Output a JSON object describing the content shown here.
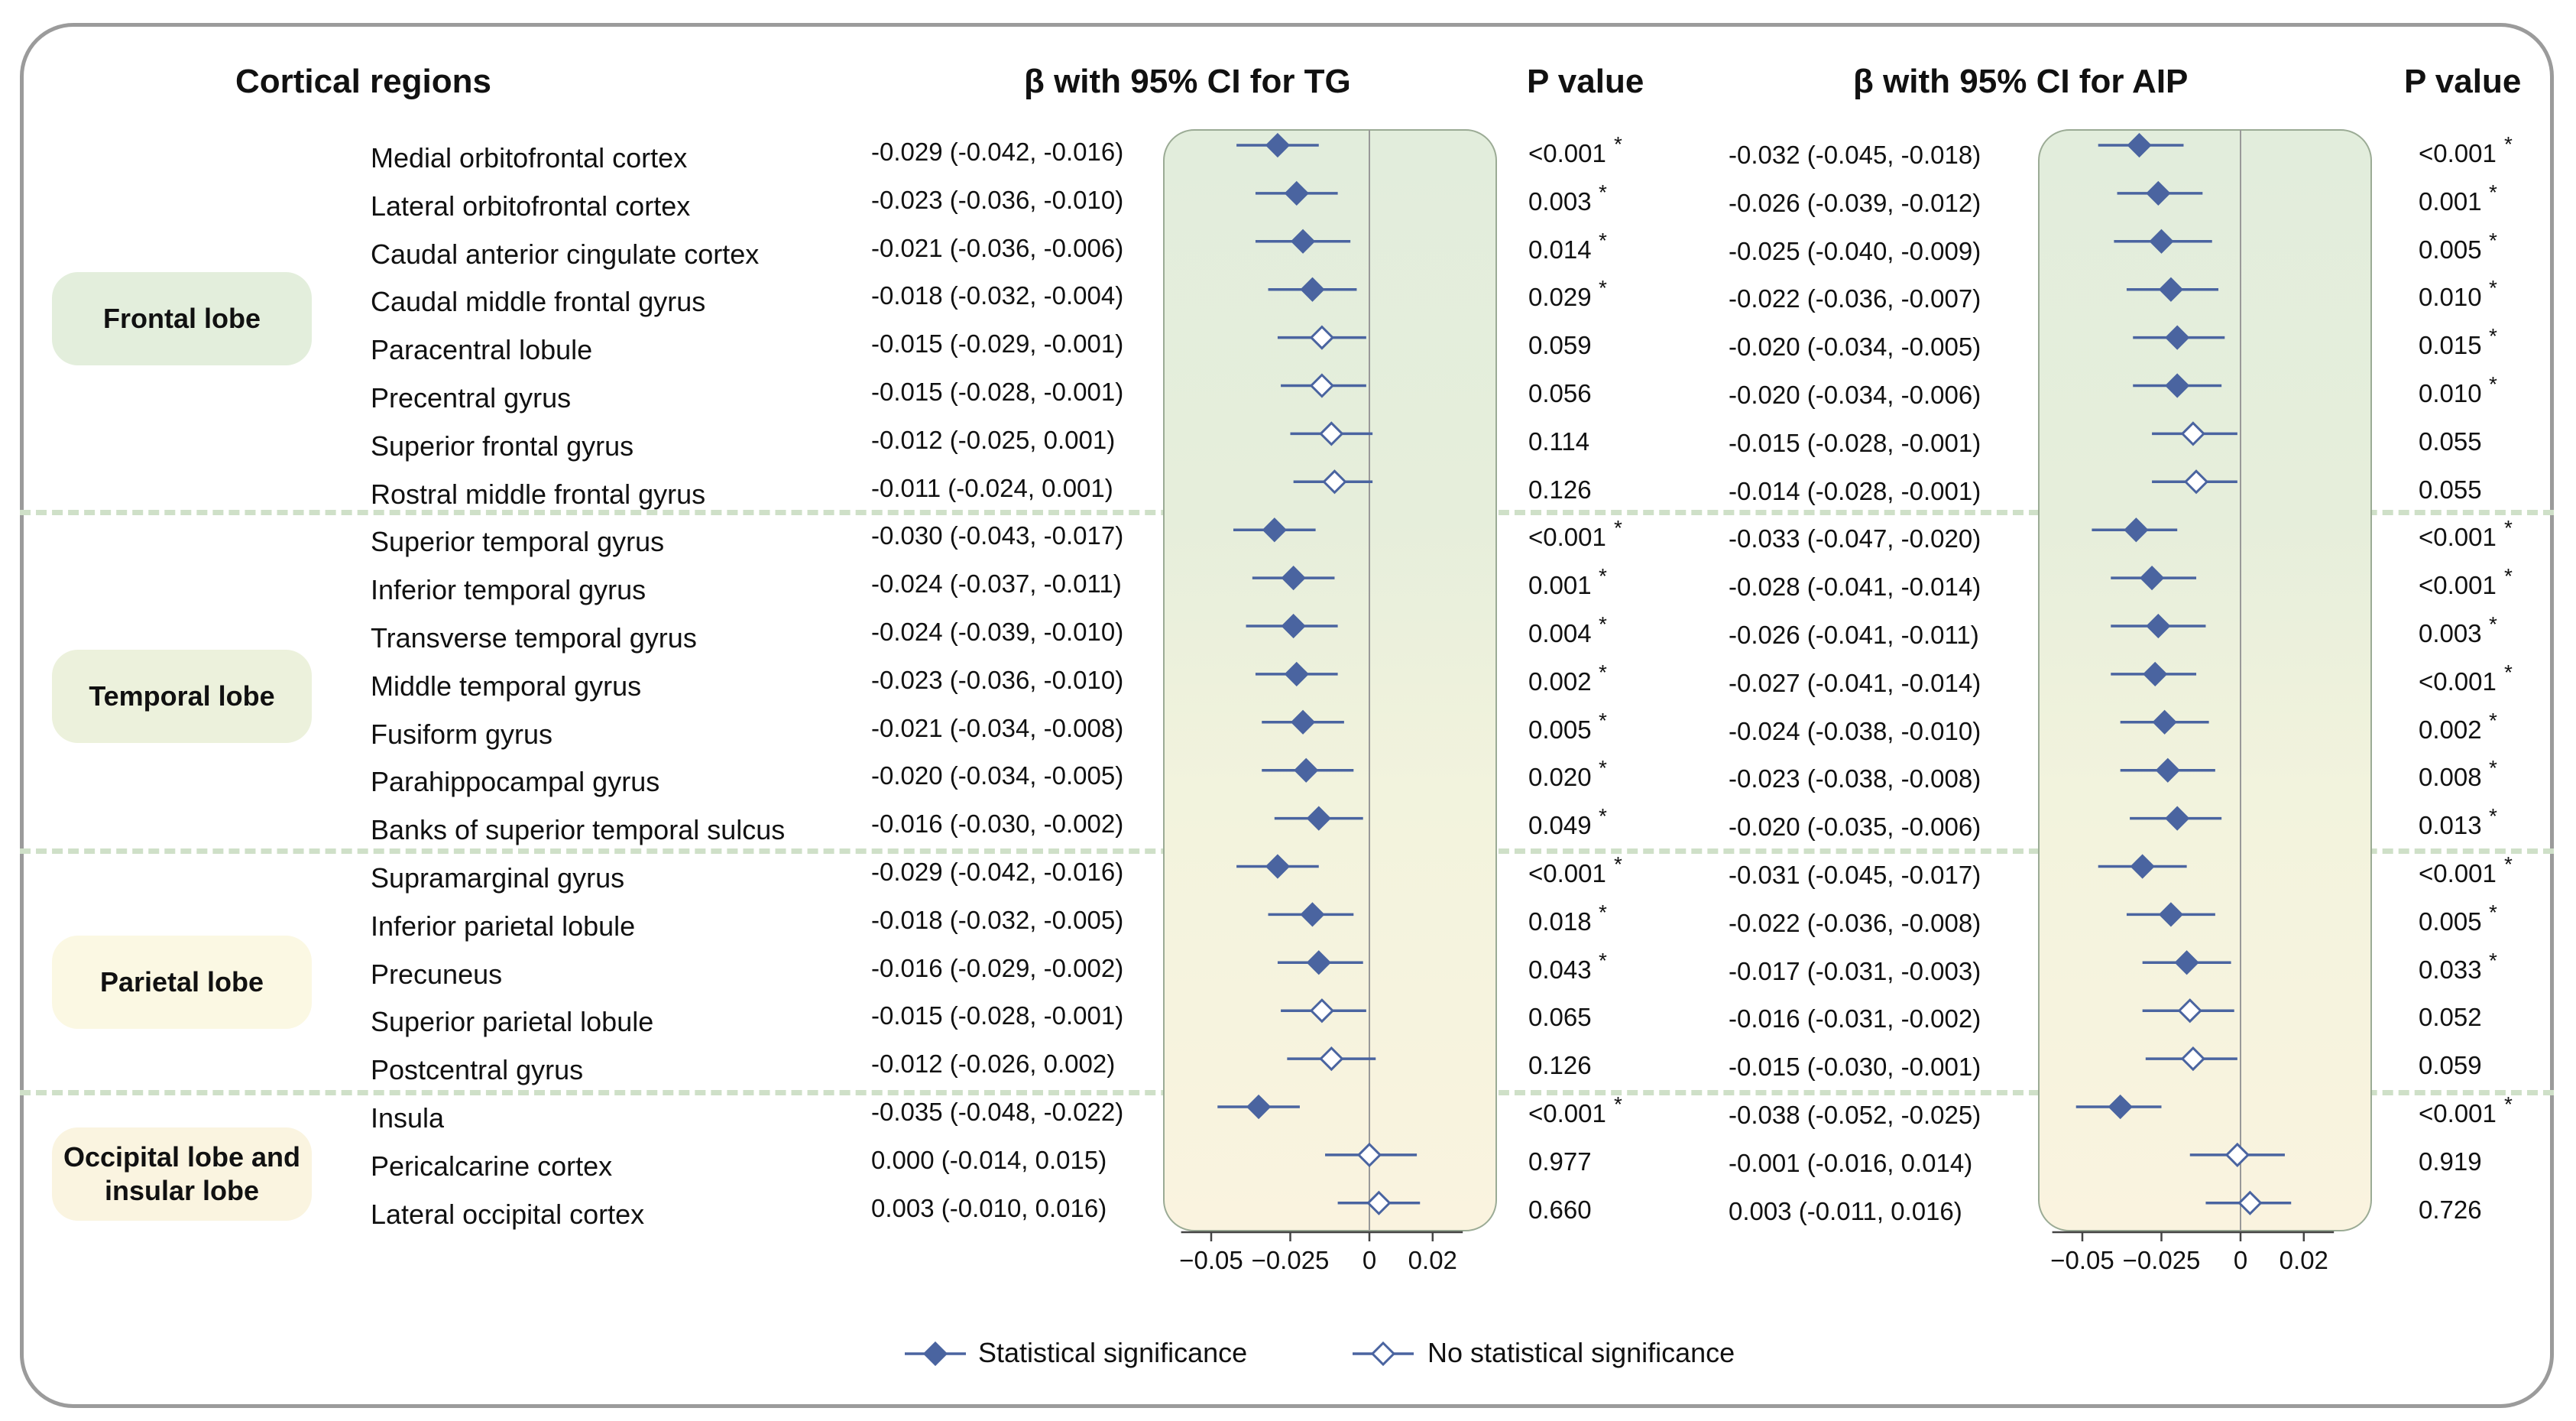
{
  "headers": {
    "regions": "Cortical regions",
    "tg": "β with 95% CI for TG",
    "p_tg": "P value",
    "aip": "β with 95% CI for AIP",
    "p_aip": "P value"
  },
  "groups": [
    {
      "label": "Frontal lobe",
      "color": "#e3eedc"
    },
    {
      "label": "Temporal lobe",
      "color": "#ecf1dc"
    },
    {
      "label": "Parietal lobe",
      "color": "#fbf8e3"
    },
    {
      "label": "Occipital lobe and insular lobe",
      "color": "#faf4e0"
    }
  ],
  "rows": [
    {
      "region": "Medial orbitofrontal cortex",
      "group": 0,
      "tg": {
        "ci": "-0.029 (-0.042, -0.016)",
        "b": -0.029,
        "lo": -0.042,
        "hi": -0.016,
        "p": "<0.001",
        "sig": true
      },
      "aip": {
        "ci": "-0.032 (-0.045, -0.018)",
        "b": -0.032,
        "lo": -0.045,
        "hi": -0.018,
        "p": "<0.001",
        "sig": true
      }
    },
    {
      "region": "Lateral orbitofrontal cortex",
      "group": 0,
      "tg": {
        "ci": "-0.023 (-0.036, -0.010)",
        "b": -0.023,
        "lo": -0.036,
        "hi": -0.01,
        "p": "0.003",
        "sig": true
      },
      "aip": {
        "ci": "-0.026 (-0.039, -0.012)",
        "b": -0.026,
        "lo": -0.039,
        "hi": -0.012,
        "p": "0.001",
        "sig": true
      }
    },
    {
      "region": "Caudal anterior cingulate cortex",
      "group": 0,
      "tg": {
        "ci": "-0.021 (-0.036, -0.006)",
        "b": -0.021,
        "lo": -0.036,
        "hi": -0.006,
        "p": "0.014",
        "sig": true
      },
      "aip": {
        "ci": "-0.025 (-0.040, -0.009)",
        "b": -0.025,
        "lo": -0.04,
        "hi": -0.009,
        "p": "0.005",
        "sig": true
      }
    },
    {
      "region": "Caudal middle frontal gyrus",
      "group": 0,
      "tg": {
        "ci": "-0.018 (-0.032, -0.004)",
        "b": -0.018,
        "lo": -0.032,
        "hi": -0.004,
        "p": "0.029",
        "sig": true
      },
      "aip": {
        "ci": "-0.022 (-0.036, -0.007)",
        "b": -0.022,
        "lo": -0.036,
        "hi": -0.007,
        "p": "0.010",
        "sig": true
      }
    },
    {
      "region": "Paracentral lobule",
      "group": 0,
      "tg": {
        "ci": "-0.015 (-0.029, -0.001)",
        "b": -0.015,
        "lo": -0.029,
        "hi": -0.001,
        "p": "0.059",
        "sig": false
      },
      "aip": {
        "ci": "-0.020 (-0.034, -0.005)",
        "b": -0.02,
        "lo": -0.034,
        "hi": -0.005,
        "p": "0.015",
        "sig": true
      }
    },
    {
      "region": "Precentral gyrus",
      "group": 0,
      "tg": {
        "ci": "-0.015 (-0.028, -0.001)",
        "b": -0.015,
        "lo": -0.028,
        "hi": -0.001,
        "p": "0.056",
        "sig": false
      },
      "aip": {
        "ci": "-0.020 (-0.034, -0.006)",
        "b": -0.02,
        "lo": -0.034,
        "hi": -0.006,
        "p": "0.010",
        "sig": true
      }
    },
    {
      "region": "Superior frontal gyrus",
      "group": 0,
      "tg": {
        "ci": "-0.012 (-0.025, 0.001)",
        "b": -0.012,
        "lo": -0.025,
        "hi": 0.001,
        "p": "0.114",
        "sig": false
      },
      "aip": {
        "ci": "-0.015 (-0.028, -0.001)",
        "b": -0.015,
        "lo": -0.028,
        "hi": -0.001,
        "p": "0.055",
        "sig": false
      }
    },
    {
      "region": "Rostral middle frontal gyrus",
      "group": 0,
      "tg": {
        "ci": "-0.011 (-0.024, 0.001)",
        "b": -0.011,
        "lo": -0.024,
        "hi": 0.001,
        "p": "0.126",
        "sig": false
      },
      "aip": {
        "ci": "-0.014 (-0.028, -0.001)",
        "b": -0.014,
        "lo": -0.028,
        "hi": -0.001,
        "p": "0.055",
        "sig": false
      }
    },
    {
      "region": "Superior temporal gyrus",
      "group": 1,
      "tg": {
        "ci": "-0.030 (-0.043, -0.017)",
        "b": -0.03,
        "lo": -0.043,
        "hi": -0.017,
        "p": "<0.001",
        "sig": true
      },
      "aip": {
        "ci": "-0.033 (-0.047, -0.020)",
        "b": -0.033,
        "lo": -0.047,
        "hi": -0.02,
        "p": "<0.001",
        "sig": true
      }
    },
    {
      "region": "Inferior temporal gyrus",
      "group": 1,
      "tg": {
        "ci": "-0.024 (-0.037, -0.011)",
        "b": -0.024,
        "lo": -0.037,
        "hi": -0.011,
        "p": "0.001",
        "sig": true
      },
      "aip": {
        "ci": "-0.028 (-0.041, -0.014)",
        "b": -0.028,
        "lo": -0.041,
        "hi": -0.014,
        "p": "<0.001",
        "sig": true
      }
    },
    {
      "region": "Transverse temporal gyrus",
      "group": 1,
      "tg": {
        "ci": "-0.024 (-0.039, -0.010)",
        "b": -0.024,
        "lo": -0.039,
        "hi": -0.01,
        "p": "0.004",
        "sig": true
      },
      "aip": {
        "ci": "-0.026 (-0.041, -0.011)",
        "b": -0.026,
        "lo": -0.041,
        "hi": -0.011,
        "p": "0.003",
        "sig": true
      }
    },
    {
      "region": "Middle temporal gyrus",
      "group": 1,
      "tg": {
        "ci": "-0.023 (-0.036, -0.010)",
        "b": -0.023,
        "lo": -0.036,
        "hi": -0.01,
        "p": "0.002",
        "sig": true
      },
      "aip": {
        "ci": "-0.027 (-0.041, -0.014)",
        "b": -0.027,
        "lo": -0.041,
        "hi": -0.014,
        "p": "<0.001",
        "sig": true
      }
    },
    {
      "region": "Fusiform gyrus",
      "group": 1,
      "tg": {
        "ci": "-0.021 (-0.034, -0.008)",
        "b": -0.021,
        "lo": -0.034,
        "hi": -0.008,
        "p": "0.005",
        "sig": true
      },
      "aip": {
        "ci": "-0.024 (-0.038, -0.010)",
        "b": -0.024,
        "lo": -0.038,
        "hi": -0.01,
        "p": "0.002",
        "sig": true
      }
    },
    {
      "region": "Parahippocampal gyrus",
      "group": 1,
      "tg": {
        "ci": "-0.020 (-0.034, -0.005)",
        "b": -0.02,
        "lo": -0.034,
        "hi": -0.005,
        "p": "0.020",
        "sig": true
      },
      "aip": {
        "ci": "-0.023 (-0.038, -0.008)",
        "b": -0.023,
        "lo": -0.038,
        "hi": -0.008,
        "p": "0.008",
        "sig": true
      }
    },
    {
      "region": "Banks of superior temporal sulcus",
      "group": 1,
      "tg": {
        "ci": "-0.016 (-0.030, -0.002)",
        "b": -0.016,
        "lo": -0.03,
        "hi": -0.002,
        "p": "0.049",
        "sig": true
      },
      "aip": {
        "ci": "-0.020 (-0.035, -0.006)",
        "b": -0.02,
        "lo": -0.035,
        "hi": -0.006,
        "p": "0.013",
        "sig": true
      }
    },
    {
      "region": "Supramarginal gyrus",
      "group": 2,
      "tg": {
        "ci": "-0.029 (-0.042, -0.016)",
        "b": -0.029,
        "lo": -0.042,
        "hi": -0.016,
        "p": "<0.001",
        "sig": true
      },
      "aip": {
        "ci": "-0.031 (-0.045, -0.017)",
        "b": -0.031,
        "lo": -0.045,
        "hi": -0.017,
        "p": "<0.001",
        "sig": true
      }
    },
    {
      "region": "Inferior parietal lobule",
      "group": 2,
      "tg": {
        "ci": "-0.018 (-0.032, -0.005)",
        "b": -0.018,
        "lo": -0.032,
        "hi": -0.005,
        "p": "0.018",
        "sig": true
      },
      "aip": {
        "ci": "-0.022 (-0.036, -0.008)",
        "b": -0.022,
        "lo": -0.036,
        "hi": -0.008,
        "p": "0.005",
        "sig": true
      }
    },
    {
      "region": "Precuneus",
      "group": 2,
      "tg": {
        "ci": "-0.016 (-0.029, -0.002)",
        "b": -0.016,
        "lo": -0.029,
        "hi": -0.002,
        "p": "0.043",
        "sig": true
      },
      "aip": {
        "ci": "-0.017 (-0.031, -0.003)",
        "b": -0.017,
        "lo": -0.031,
        "hi": -0.003,
        "p": "0.033",
        "sig": true
      }
    },
    {
      "region": "Superior parietal lobule",
      "group": 2,
      "tg": {
        "ci": "-0.015 (-0.028, -0.001)",
        "b": -0.015,
        "lo": -0.028,
        "hi": -0.001,
        "p": "0.065",
        "sig": false
      },
      "aip": {
        "ci": "-0.016 (-0.031, -0.002)",
        "b": -0.016,
        "lo": -0.031,
        "hi": -0.002,
        "p": "0.052",
        "sig": false
      }
    },
    {
      "region": "Postcentral gyrus",
      "group": 2,
      "tg": {
        "ci": "-0.012 (-0.026, 0.002)",
        "b": -0.012,
        "lo": -0.026,
        "hi": 0.002,
        "p": "0.126",
        "sig": false
      },
      "aip": {
        "ci": "-0.015 (-0.030, -0.001)",
        "b": -0.015,
        "lo": -0.03,
        "hi": -0.001,
        "p": "0.059",
        "sig": false
      }
    },
    {
      "region": "Insula",
      "group": 3,
      "tg": {
        "ci": "-0.035 (-0.048, -0.022)",
        "b": -0.035,
        "lo": -0.048,
        "hi": -0.022,
        "p": "<0.001",
        "sig": true
      },
      "aip": {
        "ci": "-0.038 (-0.052, -0.025)",
        "b": -0.038,
        "lo": -0.052,
        "hi": -0.025,
        "p": "<0.001",
        "sig": true
      }
    },
    {
      "region": "Pericalcarine cortex",
      "group": 3,
      "tg": {
        "ci": "0.000 (-0.014, 0.015)",
        "b": 0.0,
        "lo": -0.014,
        "hi": 0.015,
        "p": "0.977",
        "sig": false
      },
      "aip": {
        "ci": "-0.001 (-0.016, 0.014)",
        "b": -0.001,
        "lo": -0.016,
        "hi": 0.014,
        "p": "0.919",
        "sig": false
      }
    },
    {
      "region": "Lateral occipital cortex",
      "group": 3,
      "tg": {
        "ci": "0.003 (-0.010, 0.016)",
        "b": 0.003,
        "lo": -0.01,
        "hi": 0.016,
        "p": "0.660",
        "sig": false
      },
      "aip": {
        "ci": "0.003 (-0.011, 0.016)",
        "b": 0.003,
        "lo": -0.011,
        "hi": 0.016,
        "p": "0.726",
        "sig": false
      }
    }
  ],
  "star": "*",
  "legend": {
    "sig": "Statistical significance",
    "nonsig": "No statistical significance"
  },
  "colors": {
    "marker": "#4a64a0",
    "frame": "#9b9b9b",
    "zero_line": "#999999"
  },
  "chart_data": [
    {
      "type": "scatter",
      "title": "β with 95% CI for TG",
      "xlim": [
        -0.06,
        0.03
      ],
      "xticks": [
        -0.05,
        -0.025,
        0,
        0.02
      ],
      "xtick_labels": [
        "−0.05",
        "−0.025",
        "0",
        "0.02"
      ],
      "series": "rows[].tg (b, lo, hi)"
    },
    {
      "type": "scatter",
      "title": "β with 95% CI for AIP",
      "xlim": [
        -0.06,
        0.03
      ],
      "xticks": [
        -0.05,
        -0.025,
        0,
        0.02
      ],
      "xtick_labels": [
        "−0.05",
        "−0.025",
        "0",
        "0.02"
      ],
      "series": "rows[].aip (b, lo, hi)"
    }
  ]
}
